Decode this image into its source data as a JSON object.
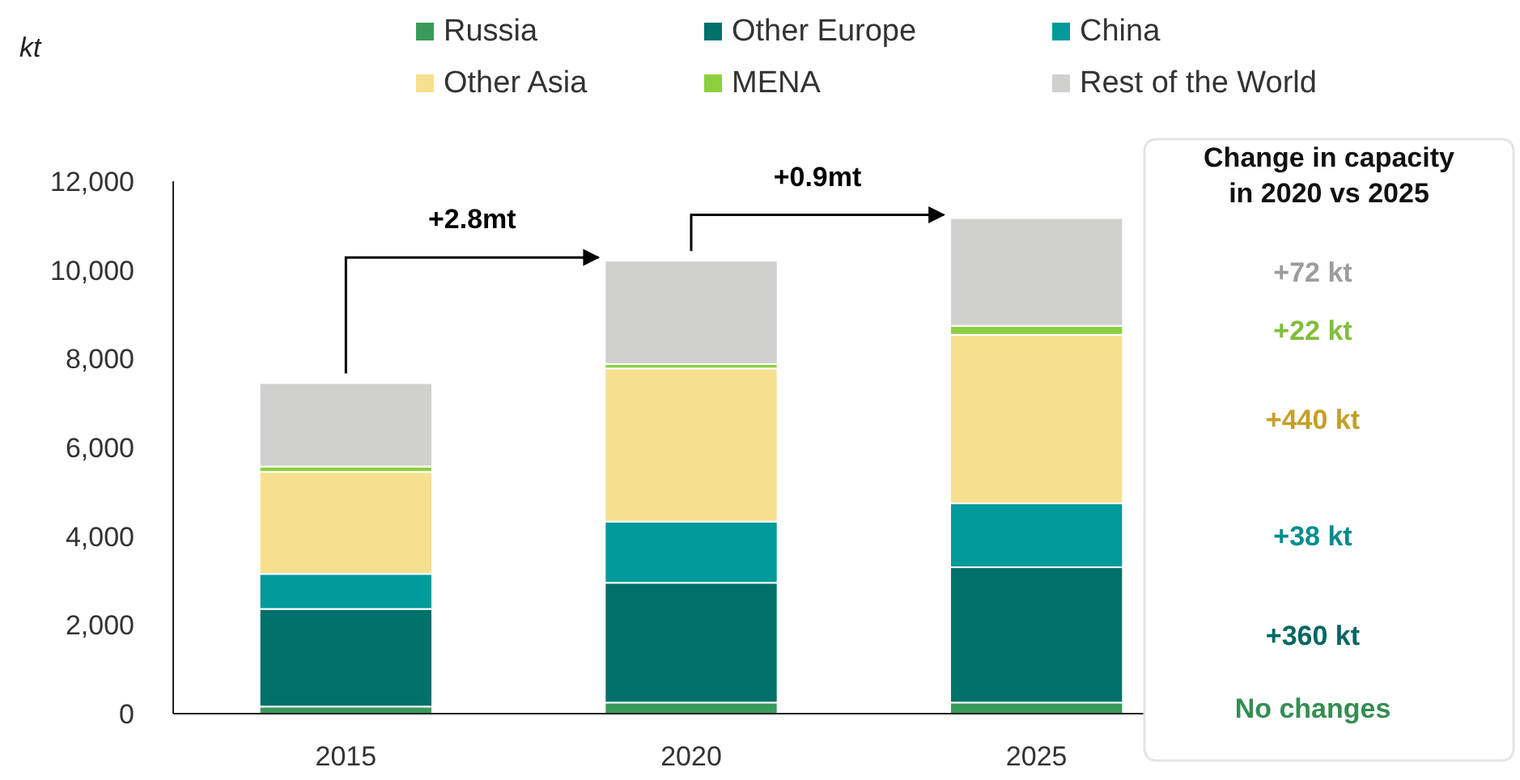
{
  "chart_data": {
    "type": "bar",
    "stacked": true,
    "ylabel": "kt",
    "categories": [
      "2015",
      "2020",
      "2025"
    ],
    "series": [
      {
        "name": "Russia",
        "color": "#3a9a5b",
        "values": [
          160,
          250,
          250
        ]
      },
      {
        "name": "Other Europe",
        "color": "#00706b",
        "values": [
          2200,
          2700,
          3050
        ]
      },
      {
        "name": "China",
        "color": "#009a9a",
        "values": [
          790,
          1380,
          1440
        ]
      },
      {
        "name": "Other Asia",
        "color": "#f5e08f",
        "values": [
          2300,
          3450,
          3800
        ]
      },
      {
        "name": "MENA",
        "color": "#8dd03f",
        "values": [
          120,
          100,
          200
        ]
      },
      {
        "name": "Rest of the World",
        "color": "#d0d0ce",
        "values": [
          1880,
          2330,
          2430
        ]
      }
    ],
    "ylim": [
      0,
      12000
    ],
    "yticks": [
      {
        "value": 0,
        "label": "0"
      },
      {
        "value": 2000,
        "label": "2,000"
      },
      {
        "value": 4000,
        "label": "4,000"
      },
      {
        "value": 6000,
        "label": "6,000"
      },
      {
        "value": 8000,
        "label": "8,000"
      },
      {
        "value": 10000,
        "label": "10,000"
      },
      {
        "value": 12000,
        "label": "12,000"
      }
    ],
    "legend": "top",
    "grid": false,
    "annotations": [
      "+2.8mt",
      "+0.9mt",
      "Change in capacity in 2020 vs 2025",
      "+72 kt",
      "+22 kt",
      "+440 kt",
      "+38 kt",
      "+360 kt",
      "No changes"
    ]
  }
}
